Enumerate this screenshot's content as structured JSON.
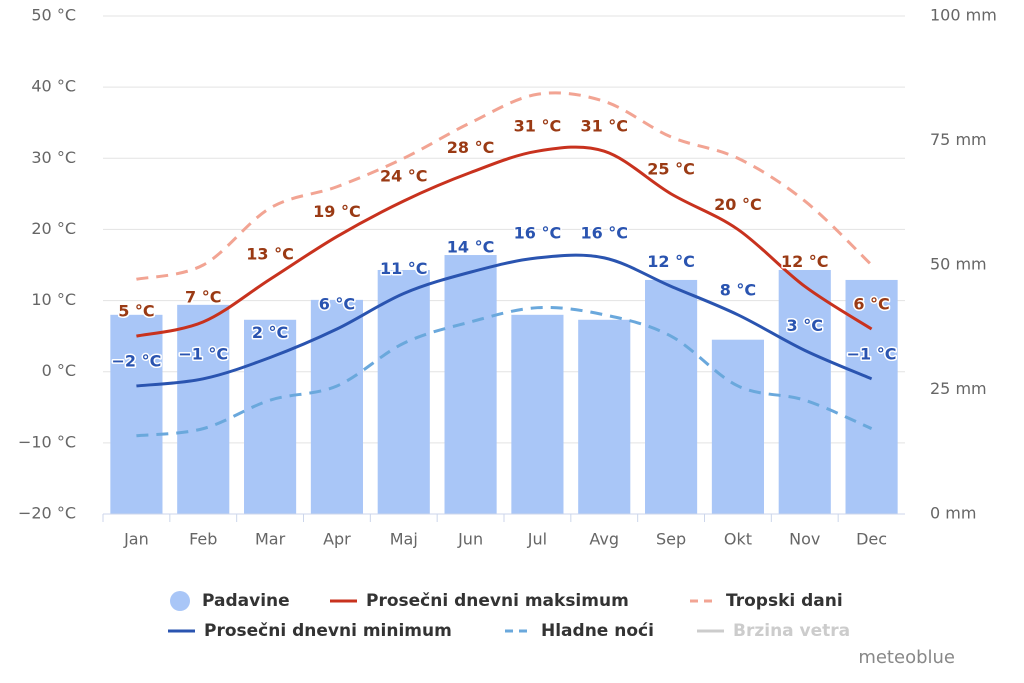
{
  "chart_data": {
    "type": "combo",
    "categories": [
      "Jan",
      "Feb",
      "Mar",
      "Apr",
      "Maj",
      "Jun",
      "Jul",
      "Avg",
      "Sep",
      "Okt",
      "Nov",
      "Dec"
    ],
    "ylim": [
      -20,
      50
    ],
    "yticks": [
      {
        "value": -20,
        "label": "−20 °C"
      },
      {
        "value": -10,
        "label": "−10 °C"
      },
      {
        "value": 0,
        "label": "0 °C"
      },
      {
        "value": 10,
        "label": "10 °C"
      },
      {
        "value": 20,
        "label": "20 °C"
      },
      {
        "value": 30,
        "label": "30 °C"
      },
      {
        "value": 40,
        "label": "40 °C"
      },
      {
        "value": 50,
        "label": "50 °C"
      }
    ],
    "y2lim": [
      0,
      100
    ],
    "y2ticks": [
      {
        "value": 0,
        "label": "0 mm"
      },
      {
        "value": 25,
        "label": "25 mm"
      },
      {
        "value": 50,
        "label": "50 mm"
      },
      {
        "value": 75,
        "label": "75 mm"
      },
      {
        "value": 100,
        "label": "100 mm"
      }
    ],
    "grid": true,
    "series": [
      {
        "name": "Padavine",
        "type": "bar",
        "axis": "y2",
        "color": "#a9c6f7",
        "values": [
          40,
          42,
          39,
          43,
          49,
          52,
          40,
          39,
          47,
          35,
          49,
          47
        ]
      },
      {
        "name": "Prosečni dnevni maksimum",
        "type": "line",
        "color": "#c8321e",
        "label_color": "#9a3a14",
        "values": [
          5,
          7,
          13,
          19,
          24,
          28,
          31,
          31,
          25,
          20,
          12,
          6
        ],
        "value_labels": [
          "5 °C",
          "7 °C",
          "13 °C",
          "19 °C",
          "24 °C",
          "28 °C",
          "31 °C",
          "31 °C",
          "25 °C",
          "20 °C",
          "12 °C",
          "6 °C"
        ]
      },
      {
        "name": "Tropski dani",
        "type": "line",
        "dash": true,
        "color": "#f2a493",
        "values": [
          13,
          15,
          23,
          26,
          30,
          35,
          39,
          38,
          33,
          30,
          24,
          15
        ]
      },
      {
        "name": "Prosečni dnevni minimum",
        "type": "line",
        "color": "#2a54b0",
        "label_color": "#2a54b0",
        "values": [
          -2,
          -1,
          2,
          6,
          11,
          14,
          16,
          16,
          12,
          8,
          3,
          -1
        ],
        "value_labels": [
          "−2 °C",
          "−1 °C",
          "2 °C",
          "6 °C",
          "11 °C",
          "14 °C",
          "16 °C",
          "16 °C",
          "12 °C",
          "8 °C",
          "3 °C",
          "−1 °C"
        ]
      },
      {
        "name": "Hladne noći",
        "type": "line",
        "dash": true,
        "color": "#6aa8dc",
        "values": [
          -9,
          -8,
          -4,
          -2,
          4,
          7,
          9,
          8,
          5,
          -2,
          -4,
          -8
        ]
      },
      {
        "name": "Brzina vetra",
        "type": "line",
        "color": "#cccccc",
        "visible": false
      }
    ],
    "watermark": "meteoblue"
  }
}
